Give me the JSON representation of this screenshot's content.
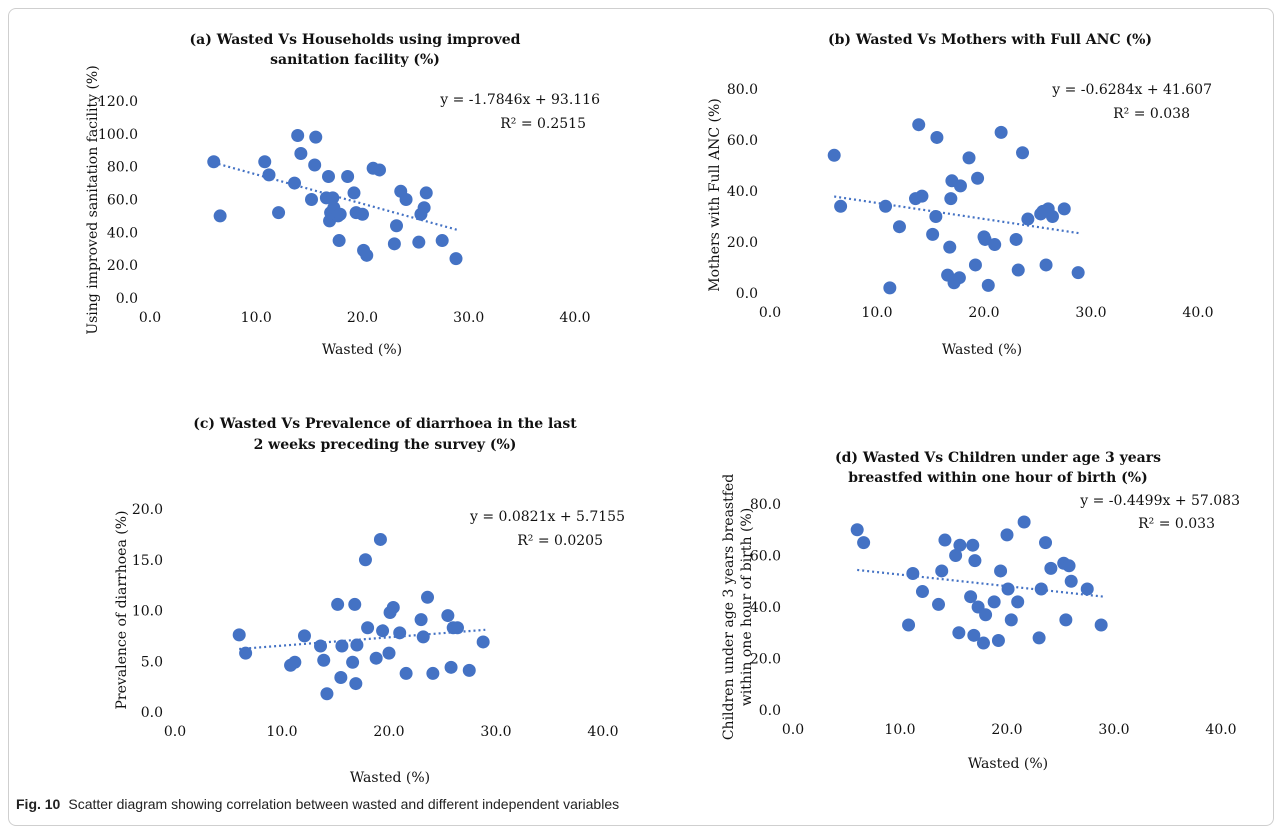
{
  "caption": {
    "label": "Fig. 10",
    "text": "Scatter diagram showing correlation between wasted and different independent variables"
  },
  "marker_color": "#4472c4",
  "chart_data": [
    {
      "type": "scatter",
      "title": [
        "(a)  Wasted  Vs Households using improved",
        "sanitation facility (%)"
      ],
      "xlabel": "Wasted (%)",
      "ylabel": [
        "Using improved sanitation facility (%)"
      ],
      "xlim": [
        0,
        40
      ],
      "ylim": [
        0,
        120
      ],
      "xticks": [
        "0.0",
        "10.0",
        "20.0",
        "30.0",
        "40.0"
      ],
      "yticks": [
        "0.0",
        "20.0",
        "40.0",
        "60.0",
        "80.0",
        "100.0",
        "120.0"
      ],
      "equation": "y = -1.7846x + 93.116",
      "r2": "R² = 0.2515",
      "trendline": {
        "slope": -1.7846,
        "intercept": 93.116,
        "x_range": [
          6,
          29
        ]
      },
      "points": [
        [
          6,
          83
        ],
        [
          6.6,
          50
        ],
        [
          10.8,
          83
        ],
        [
          11.2,
          75
        ],
        [
          12.1,
          52
        ],
        [
          13.6,
          70
        ],
        [
          13.9,
          99
        ],
        [
          14.2,
          88
        ],
        [
          15.2,
          60
        ],
        [
          15.5,
          81
        ],
        [
          15.6,
          98
        ],
        [
          16.6,
          61
        ],
        [
          16.8,
          74
        ],
        [
          16.9,
          47
        ],
        [
          17.0,
          52
        ],
        [
          17.2,
          61
        ],
        [
          17.3,
          55
        ],
        [
          17.7,
          50
        ],
        [
          17.8,
          35
        ],
        [
          17.9,
          51
        ],
        [
          18.6,
          74
        ],
        [
          19.2,
          64
        ],
        [
          19.4,
          52
        ],
        [
          20.0,
          51
        ],
        [
          20.1,
          29
        ],
        [
          20.4,
          26
        ],
        [
          21.0,
          79
        ],
        [
          21.6,
          78
        ],
        [
          23.0,
          33
        ],
        [
          23.2,
          44
        ],
        [
          23.6,
          65
        ],
        [
          24.1,
          60
        ],
        [
          25.3,
          34
        ],
        [
          25.5,
          51
        ],
        [
          25.8,
          55
        ],
        [
          26.0,
          64
        ],
        [
          27.5,
          35
        ],
        [
          28.8,
          24
        ]
      ]
    },
    {
      "type": "scatter",
      "title": [
        "(b)  Wasted Vs Mothers with Full ANC (%)"
      ],
      "xlabel": "Wasted (%)",
      "ylabel": [
        "Mothers with Full ANC (%)"
      ],
      "xlim": [
        0,
        40
      ],
      "ylim": [
        0,
        80
      ],
      "xticks": [
        "0.0",
        "10.0",
        "20.0",
        "30.0",
        "40.0"
      ],
      "yticks": [
        "0.0",
        "20.0",
        "40.0",
        "60.0",
        "80.0"
      ],
      "equation": "y = -0.6284x + 41.607",
      "r2": "R² = 0.038",
      "trendline": {
        "slope": -0.6284,
        "intercept": 41.607,
        "x_range": [
          6,
          29
        ]
      },
      "points": [
        [
          6,
          54
        ],
        [
          6.6,
          34
        ],
        [
          10.8,
          34
        ],
        [
          11.2,
          2
        ],
        [
          12.1,
          26
        ],
        [
          13.6,
          37
        ],
        [
          13.9,
          66
        ],
        [
          14.2,
          38
        ],
        [
          15.2,
          23
        ],
        [
          15.5,
          30
        ],
        [
          15.6,
          61
        ],
        [
          16.6,
          7
        ],
        [
          16.8,
          18
        ],
        [
          16.9,
          37
        ],
        [
          17.0,
          44
        ],
        [
          17.2,
          4
        ],
        [
          17.3,
          5
        ],
        [
          17.7,
          6
        ],
        [
          17.8,
          42
        ],
        [
          18.6,
          53
        ],
        [
          19.2,
          11
        ],
        [
          19.4,
          45
        ],
        [
          20.0,
          22
        ],
        [
          20.1,
          21
        ],
        [
          20.4,
          3
        ],
        [
          21.0,
          19
        ],
        [
          21.6,
          63
        ],
        [
          23.0,
          21
        ],
        [
          23.2,
          9
        ],
        [
          23.6,
          55
        ],
        [
          24.1,
          29
        ],
        [
          25.3,
          31
        ],
        [
          25.5,
          32
        ],
        [
          25.8,
          11
        ],
        [
          26.0,
          33
        ],
        [
          26.4,
          30
        ],
        [
          27.5,
          33
        ],
        [
          28.8,
          8
        ]
      ]
    },
    {
      "type": "scatter",
      "title": [
        "(c)  Wasted Vs Prevalence of diarrhoea in the last",
        "2 weeks preceding the survey (%)"
      ],
      "xlabel": "Wasted (%)",
      "ylabel": [
        "Prevalence of diarrhoea (%)"
      ],
      "xlim": [
        0,
        40
      ],
      "ylim": [
        0,
        20
      ],
      "xticks": [
        "0.0",
        "10.0",
        "20.0",
        "30.0",
        "40.0"
      ],
      "yticks": [
        "0.0",
        "5.0",
        "10.0",
        "15.0",
        "20.0"
      ],
      "equation": "y = 0.0821x + 5.7155",
      "r2": "R² = 0.0205",
      "trendline": {
        "slope": 0.0821,
        "intercept": 5.7155,
        "x_range": [
          6,
          29
        ]
      },
      "points": [
        [
          6,
          7.6
        ],
        [
          6.6,
          5.8
        ],
        [
          10.8,
          4.6
        ],
        [
          11.2,
          4.9
        ],
        [
          12.1,
          7.5
        ],
        [
          13.6,
          6.5
        ],
        [
          13.9,
          5.1
        ],
        [
          14.2,
          1.8
        ],
        [
          15.2,
          10.6
        ],
        [
          15.5,
          3.4
        ],
        [
          15.6,
          6.5
        ],
        [
          16.6,
          4.9
        ],
        [
          16.8,
          10.6
        ],
        [
          16.9,
          2.8
        ],
        [
          17.0,
          6.6
        ],
        [
          17.8,
          15.0
        ],
        [
          18.0,
          8.3
        ],
        [
          18.8,
          5.3
        ],
        [
          19.2,
          17.0
        ],
        [
          19.4,
          8.0
        ],
        [
          20.0,
          5.8
        ],
        [
          20.1,
          9.8
        ],
        [
          20.4,
          10.3
        ],
        [
          21.0,
          7.8
        ],
        [
          21.6,
          3.8
        ],
        [
          23.0,
          9.1
        ],
        [
          23.2,
          7.4
        ],
        [
          23.6,
          11.3
        ],
        [
          24.1,
          3.8
        ],
        [
          25.5,
          9.5
        ],
        [
          25.8,
          4.4
        ],
        [
          26.0,
          8.3
        ],
        [
          26.4,
          8.3
        ],
        [
          27.5,
          4.1
        ],
        [
          28.8,
          6.9
        ]
      ]
    },
    {
      "type": "scatter",
      "title": [
        "(d)  Wasted Vs Children under age 3 years",
        "breastfed within one hour of birth (%)"
      ],
      "xlabel": "Wasted (%)",
      "ylabel": [
        "Children under age 3 years breastfed",
        "within one hour of birth (%)"
      ],
      "xlim": [
        0,
        40
      ],
      "ylim": [
        0,
        80
      ],
      "xticks": [
        "0.0",
        "10.0",
        "20.0",
        "30.0",
        "40.0"
      ],
      "yticks": [
        "0.0",
        "20.0",
        "40.0",
        "60.0",
        "80.0"
      ],
      "equation": "y = -0.4499x + 57.083",
      "r2": "R² = 0.033",
      "trendline": {
        "slope": -0.4499,
        "intercept": 57.083,
        "x_range": [
          6,
          29
        ]
      },
      "points": [
        [
          6,
          70
        ],
        [
          6.6,
          65
        ],
        [
          10.8,
          33
        ],
        [
          11.2,
          53
        ],
        [
          12.1,
          46
        ],
        [
          13.6,
          41
        ],
        [
          13.9,
          54
        ],
        [
          14.2,
          66
        ],
        [
          15.2,
          60
        ],
        [
          15.5,
          30
        ],
        [
          15.6,
          64
        ],
        [
          16.6,
          44
        ],
        [
          16.8,
          64
        ],
        [
          16.9,
          29
        ],
        [
          17.0,
          58
        ],
        [
          17.3,
          40
        ],
        [
          17.8,
          26
        ],
        [
          18.0,
          37
        ],
        [
          18.8,
          42
        ],
        [
          19.2,
          27
        ],
        [
          19.4,
          54
        ],
        [
          20.0,
          68
        ],
        [
          20.1,
          47
        ],
        [
          20.4,
          35
        ],
        [
          21.0,
          42
        ],
        [
          21.6,
          73
        ],
        [
          23.0,
          28
        ],
        [
          23.2,
          47
        ],
        [
          23.6,
          65
        ],
        [
          24.1,
          55
        ],
        [
          25.3,
          57
        ],
        [
          25.5,
          35
        ],
        [
          25.8,
          56
        ],
        [
          26.0,
          50
        ],
        [
          27.5,
          47
        ],
        [
          28.8,
          33
        ]
      ]
    }
  ]
}
